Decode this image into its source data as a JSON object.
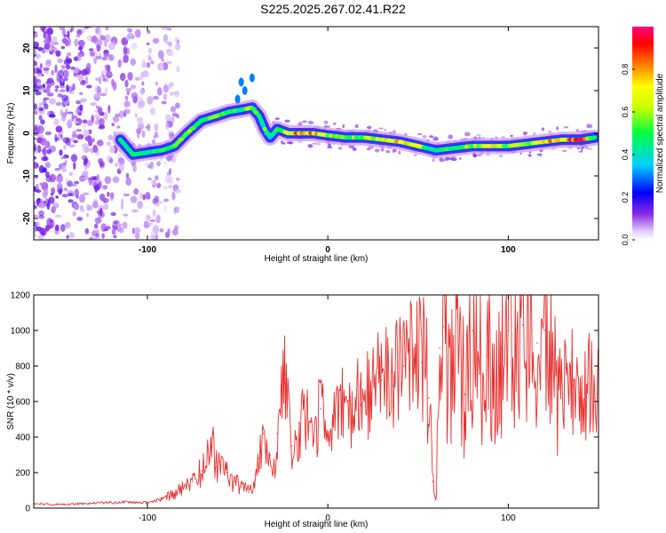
{
  "title": "S225.2025.267.02.41.R22",
  "chart_data": [
    {
      "type": "heatmap",
      "xlabel": "Height of straight line (km)",
      "ylabel": "Frequency (Hz)",
      "xlim": [
        -163,
        150
      ],
      "ylim": [
        -25,
        25
      ],
      "xticks": [
        -100,
        0,
        100
      ],
      "xtick_labels": [
        "-100",
        "0",
        "100"
      ],
      "yticks": [
        -20,
        -10,
        0,
        10,
        20
      ],
      "ytick_labels": [
        "-20",
        "-10",
        "0",
        "10",
        "20"
      ],
      "colorbar": {
        "label": "Normalized spectral amplitude",
        "range": [
          0,
          1
        ],
        "ticks": [
          0.0,
          0.2,
          0.4,
          0.6,
          0.8
        ],
        "tick_labels": [
          "0.0",
          "0.2",
          "0.4",
          "0.6",
          "0.8"
        ]
      },
      "ridge": {
        "x": [
          -115,
          -108,
          -100,
          -92,
          -85,
          -78,
          -70,
          -62,
          -55,
          -48,
          -42,
          -38,
          -35,
          -32,
          -28,
          -22,
          -15,
          -8,
          0,
          10,
          20,
          30,
          40,
          50,
          55,
          60,
          70,
          80,
          90,
          100,
          110,
          120,
          130,
          140,
          148
        ],
        "y": [
          -1.5,
          -5,
          -4.5,
          -4,
          -3,
          0,
          3,
          4,
          5,
          5.5,
          6,
          4,
          1,
          -1,
          1,
          0,
          0,
          0,
          -0.5,
          -1,
          -1,
          -1.5,
          -2,
          -3,
          -3.5,
          -4,
          -3.5,
          -3,
          -3,
          -3,
          -2.5,
          -2,
          -1.5,
          -1.5,
          -1
        ],
        "amplitude": [
          0.45,
          0.5,
          0.45,
          0.5,
          0.55,
          0.6,
          0.55,
          0.55,
          0.5,
          0.5,
          0.6,
          0.45,
          0.55,
          0.4,
          0.55,
          0.7,
          0.85,
          0.8,
          0.6,
          0.55,
          0.6,
          0.7,
          0.8,
          0.7,
          0.45,
          0.45,
          0.55,
          0.6,
          0.75,
          0.6,
          0.6,
          0.75,
          0.85,
          0.95,
          0.5
        ]
      }
    },
    {
      "type": "line",
      "xlabel": "Height of straight line (km)",
      "ylabel": "SNR (10 * v/v)",
      "xlim": [
        -163,
        150
      ],
      "ylim": [
        0,
        1200
      ],
      "xticks": [
        -100,
        0,
        100
      ],
      "xtick_labels": [
        "-100",
        "0",
        "100"
      ],
      "yticks": [
        0,
        200,
        400,
        600,
        800,
        1000,
        1200
      ],
      "ytick_labels": [
        "0",
        "200",
        "400",
        "600",
        "800",
        "1000",
        "1200"
      ],
      "series": [
        {
          "name": "SNR",
          "color": "#e8302e",
          "x": [
            -163,
            -150,
            -130,
            -110,
            -100,
            -92,
            -85,
            -80,
            -75,
            -70,
            -66,
            -64,
            -62,
            -60,
            -56,
            -52,
            -48,
            -44,
            -40,
            -38,
            -36,
            -34,
            -32,
            -30,
            -28,
            -24,
            -20,
            -16,
            -12,
            -8,
            -4,
            0,
            6,
            12,
            18,
            24,
            30,
            36,
            42,
            48,
            52,
            56,
            58,
            60,
            62,
            64,
            68,
            72,
            76,
            80,
            84,
            88,
            92,
            96,
            100,
            104,
            108,
            112,
            116,
            120,
            124,
            128,
            132,
            136,
            140,
            144,
            148,
            150
          ],
          "y": [
            25,
            20,
            28,
            35,
            30,
            50,
            80,
            110,
            150,
            210,
            280,
            420,
            230,
            260,
            200,
            150,
            120,
            90,
            160,
            280,
            420,
            360,
            300,
            250,
            420,
            700,
            350,
            480,
            500,
            380,
            560,
            400,
            520,
            610,
            580,
            650,
            720,
            690,
            800,
            900,
            820,
            620,
            150,
            60,
            900,
            1020,
            700,
            1080,
            640,
            1000,
            760,
            860,
            780,
            900,
            1000,
            980,
            1030,
            1220,
            930,
            1000,
            780,
            720,
            790,
            690,
            650,
            700,
            620,
            640
          ]
        }
      ]
    }
  ]
}
